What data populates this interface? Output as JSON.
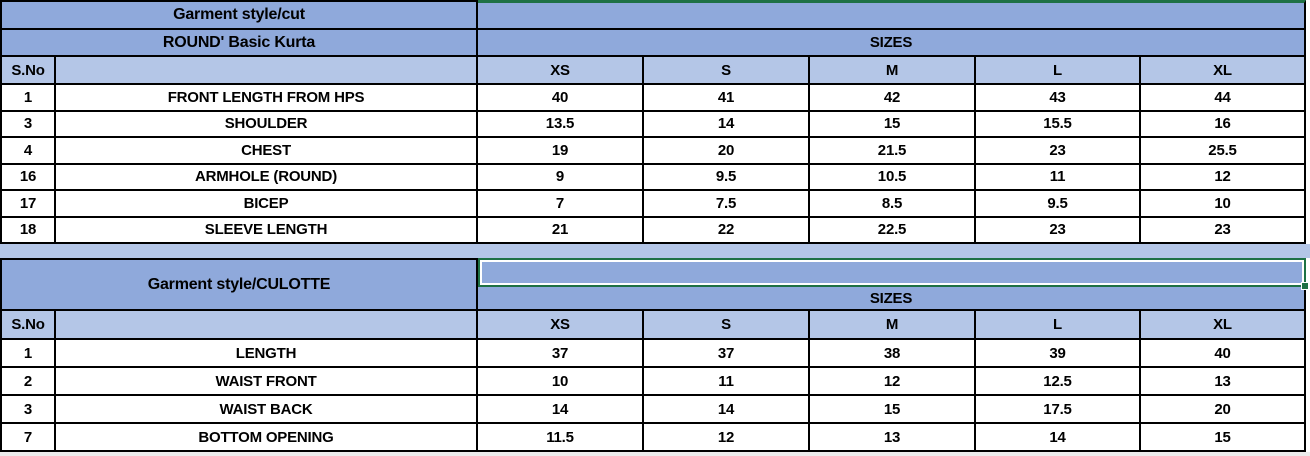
{
  "colors": {
    "header_blue": "#8FA9DB",
    "light_blue": "#B4C6E7",
    "selection_green": "#1E7145",
    "grid_black": "#000000",
    "cell_white": "#FFFFFF"
  },
  "table1": {
    "style_header": "Garment style/cut",
    "style_name": "ROUND' Basic Kurta",
    "sizes_label": "SIZES",
    "sno_label": "S.No",
    "size_columns": [
      "XS",
      "S",
      "M",
      "L",
      "XL"
    ],
    "rows": [
      {
        "sno": "1",
        "name": "FRONT LENGTH FROM HPS",
        "values": [
          "40",
          "41",
          "42",
          "43",
          "44"
        ]
      },
      {
        "sno": "3",
        "name": "SHOULDER",
        "values": [
          "13.5",
          "14",
          "15",
          "15.5",
          "16"
        ]
      },
      {
        "sno": "4",
        "name": "CHEST",
        "values": [
          "19",
          "20",
          "21.5",
          "23",
          "25.5"
        ]
      },
      {
        "sno": "16",
        "name": "ARMHOLE (ROUND)",
        "values": [
          "9",
          "9.5",
          "10.5",
          "11",
          "12"
        ]
      },
      {
        "sno": "17",
        "name": "BICEP",
        "values": [
          "7",
          "7.5",
          "8.5",
          "9.5",
          "10"
        ]
      },
      {
        "sno": "18",
        "name": "SLEEVE LENGTH",
        "values": [
          "21",
          "22",
          "22.5",
          "23",
          "23"
        ]
      }
    ]
  },
  "table2": {
    "style_header": "Garment style/CULOTTE",
    "sizes_label": "SIZES",
    "sno_label": "S.No",
    "size_columns": [
      "XS",
      "S",
      "M",
      "L",
      "XL"
    ],
    "rows": [
      {
        "sno": "1",
        "name": "LENGTH",
        "values": [
          "37",
          "37",
          "38",
          "39",
          "40"
        ]
      },
      {
        "sno": "2",
        "name": "WAIST FRONT",
        "values": [
          "10",
          "11",
          "12",
          "12.5",
          "13"
        ]
      },
      {
        "sno": "3",
        "name": "WAIST BACK",
        "values": [
          "14",
          "14",
          "15",
          "17.5",
          "20"
        ]
      },
      {
        "sno": "7",
        "name": "BOTTOM OPENING",
        "values": [
          "11.5",
          "12",
          "13",
          "14",
          "15"
        ]
      }
    ]
  }
}
